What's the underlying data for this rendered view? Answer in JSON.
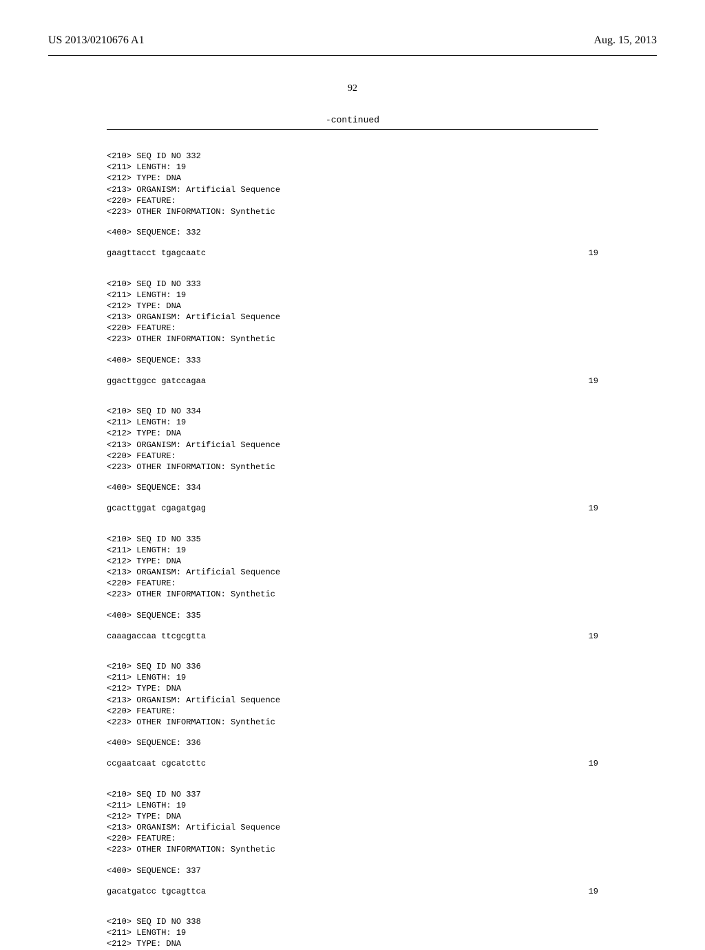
{
  "header": {
    "left": "US 2013/0210676 A1",
    "right": "Aug. 15, 2013"
  },
  "page_number": "92",
  "continued_label": "-continued",
  "entries": [
    {
      "lines": [
        "<210> SEQ ID NO 332",
        "<211> LENGTH: 19",
        "<212> TYPE: DNA",
        "<213> ORGANISM: Artificial Sequence",
        "<220> FEATURE:",
        "<223> OTHER INFORMATION: Synthetic"
      ],
      "seq_header": "<400> SEQUENCE: 332",
      "sequence": "gaagttacct tgagcaatc",
      "length": "19"
    },
    {
      "lines": [
        "<210> SEQ ID NO 333",
        "<211> LENGTH: 19",
        "<212> TYPE: DNA",
        "<213> ORGANISM: Artificial Sequence",
        "<220> FEATURE:",
        "<223> OTHER INFORMATION: Synthetic"
      ],
      "seq_header": "<400> SEQUENCE: 333",
      "sequence": "ggacttggcc gatccagaa",
      "length": "19"
    },
    {
      "lines": [
        "<210> SEQ ID NO 334",
        "<211> LENGTH: 19",
        "<212> TYPE: DNA",
        "<213> ORGANISM: Artificial Sequence",
        "<220> FEATURE:",
        "<223> OTHER INFORMATION: Synthetic"
      ],
      "seq_header": "<400> SEQUENCE: 334",
      "sequence": "gcacttggat cgagatgag",
      "length": "19"
    },
    {
      "lines": [
        "<210> SEQ ID NO 335",
        "<211> LENGTH: 19",
        "<212> TYPE: DNA",
        "<213> ORGANISM: Artificial Sequence",
        "<220> FEATURE:",
        "<223> OTHER INFORMATION: Synthetic"
      ],
      "seq_header": "<400> SEQUENCE: 335",
      "sequence": "caaagaccaa ttcgcgtta",
      "length": "19"
    },
    {
      "lines": [
        "<210> SEQ ID NO 336",
        "<211> LENGTH: 19",
        "<212> TYPE: DNA",
        "<213> ORGANISM: Artificial Sequence",
        "<220> FEATURE:",
        "<223> OTHER INFORMATION: Synthetic"
      ],
      "seq_header": "<400> SEQUENCE: 336",
      "sequence": "ccgaatcaat cgcatcttc",
      "length": "19"
    },
    {
      "lines": [
        "<210> SEQ ID NO 337",
        "<211> LENGTH: 19",
        "<212> TYPE: DNA",
        "<213> ORGANISM: Artificial Sequence",
        "<220> FEATURE:",
        "<223> OTHER INFORMATION: Synthetic"
      ],
      "seq_header": "<400> SEQUENCE: 337",
      "sequence": "gacatgatcc tgcagttca",
      "length": "19"
    },
    {
      "lines": [
        "<210> SEQ ID NO 338",
        "<211> LENGTH: 19",
        "<212> TYPE: DNA"
      ],
      "seq_header": "",
      "sequence": "",
      "length": ""
    }
  ]
}
